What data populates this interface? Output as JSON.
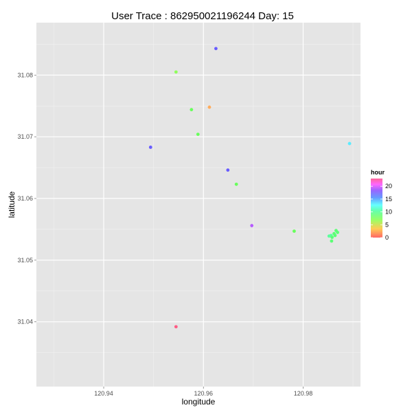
{
  "chart_data": {
    "type": "scatter",
    "title": "User Trace : 862950021196244  Day:  15",
    "xlabel": "longitude",
    "ylabel": "latitude",
    "xlim": [
      120.9265,
      120.9915
    ],
    "ylim": [
      31.0295,
      31.0885
    ],
    "x_ticks": [
      120.94,
      120.96,
      120.98
    ],
    "x_tick_labels": [
      "120.94",
      "120.96",
      "120.98"
    ],
    "y_ticks": [
      31.04,
      31.05,
      31.06,
      31.07,
      31.08
    ],
    "y_tick_labels": [
      "31.04",
      "31.05",
      "31.06",
      "31.07",
      "31.08"
    ],
    "grid": true,
    "legend": {
      "title": "hour",
      "position": "right",
      "range": [
        0,
        23
      ],
      "ticks": [
        0,
        5,
        10,
        15,
        20
      ],
      "tick_labels": [
        "0",
        "5",
        "10",
        "15",
        "20"
      ]
    },
    "points": [
      {
        "x": 120.9625,
        "y": 31.0843,
        "hour": 16
      },
      {
        "x": 120.9545,
        "y": 31.0805,
        "hour": 6
      },
      {
        "x": 120.9612,
        "y": 31.0748,
        "hour": 1
      },
      {
        "x": 120.9576,
        "y": 31.0744,
        "hour": 7
      },
      {
        "x": 120.9589,
        "y": 31.0704,
        "hour": 7
      },
      {
        "x": 120.9494,
        "y": 31.0683,
        "hour": 16
      },
      {
        "x": 120.9893,
        "y": 31.0689,
        "hour": 12
      },
      {
        "x": 120.9649,
        "y": 31.0646,
        "hour": 16
      },
      {
        "x": 120.9666,
        "y": 31.0623,
        "hour": 7
      },
      {
        "x": 120.9697,
        "y": 31.0556,
        "hour": 18
      },
      {
        "x": 120.9782,
        "y": 31.0547,
        "hour": 7
      },
      {
        "x": 120.9866,
        "y": 31.0548,
        "hour": 8
      },
      {
        "x": 120.9869,
        "y": 31.0545,
        "hour": 8
      },
      {
        "x": 120.9862,
        "y": 31.0543,
        "hour": 8
      },
      {
        "x": 120.9856,
        "y": 31.054,
        "hour": 9
      },
      {
        "x": 120.9864,
        "y": 31.054,
        "hour": 8
      },
      {
        "x": 120.9852,
        "y": 31.0539,
        "hour": 9
      },
      {
        "x": 120.9858,
        "y": 31.0537,
        "hour": 8
      },
      {
        "x": 120.9857,
        "y": 31.0531,
        "hour": 8
      },
      {
        "x": 120.9545,
        "y": 31.0392,
        "hour": 23
      }
    ]
  }
}
